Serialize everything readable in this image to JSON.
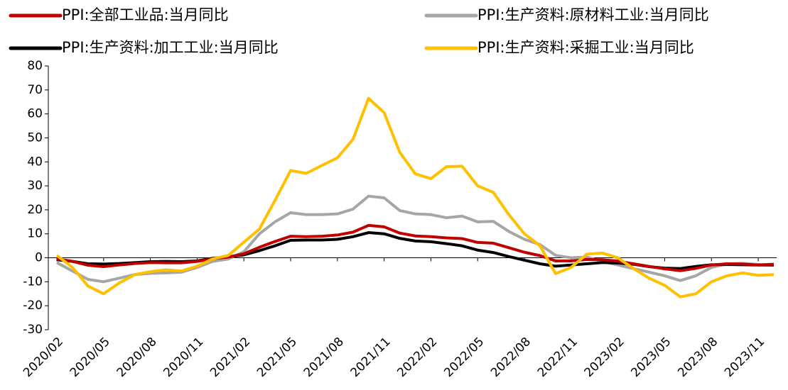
{
  "chart_data": {
    "type": "line",
    "categories": [
      "2020/02",
      null,
      null,
      "2020/05",
      null,
      null,
      "2020/08",
      null,
      null,
      "2020/11",
      null,
      null,
      "2021/02",
      null,
      null,
      "2021/05",
      null,
      null,
      "2021/08",
      null,
      null,
      "2021/11",
      null,
      null,
      "2022/02",
      null,
      null,
      "2022/05",
      null,
      null,
      "2022/08",
      null,
      null,
      "2022/11",
      null,
      null,
      "2023/02",
      null,
      null,
      "2023/05",
      null,
      null,
      "2023/08",
      null,
      null,
      "2023/11",
      null
    ],
    "series": [
      {
        "name": "PPI:全部工业品:当月同比",
        "color": "#c00000",
        "values": [
          -0.4,
          -1.5,
          -3.1,
          -3.7,
          -3.0,
          -2.4,
          -2.0,
          -2.1,
          -2.1,
          -1.5,
          -0.4,
          0.3,
          1.7,
          4.4,
          6.8,
          9.0,
          8.8,
          9.0,
          9.5,
          10.7,
          13.5,
          12.9,
          10.3,
          9.1,
          8.8,
          8.3,
          8.0,
          6.4,
          6.1,
          4.2,
          2.3,
          0.9,
          -1.3,
          -1.3,
          -0.7,
          -0.8,
          -1.4,
          -2.5,
          -3.6,
          -4.6,
          -5.4,
          -4.4,
          -3.0,
          -2.5,
          -2.6,
          -3.0,
          -2.7
        ]
      },
      {
        "name": "PPI:生产资料:原材料工业:当月同比",
        "color": "#a6a6a6",
        "values": [
          -2,
          -5.5,
          -9,
          -10,
          -8.5,
          -7,
          -6.5,
          -6.3,
          -6,
          -4,
          -1.5,
          -0.5,
          2.5,
          10,
          15,
          18.8,
          18,
          18,
          18.3,
          20.3,
          25.7,
          25,
          19.7,
          18.3,
          18,
          16.7,
          17.4,
          15,
          15.2,
          11,
          7.7,
          5.5,
          1,
          0,
          0.3,
          -1.5,
          -3,
          -4.5,
          -6,
          -7.5,
          -9.5,
          -7.5,
          -4,
          -2.5,
          -2.3,
          -2.8,
          -3
        ]
      },
      {
        "name": "PPI:生产资料:加工工业:当月同比",
        "color": "#000000",
        "values": [
          -0.8,
          -1.5,
          -2.5,
          -2.6,
          -2.4,
          -2,
          -1.6,
          -1.5,
          -1.6,
          -1.3,
          -0.2,
          0.4,
          1.2,
          3,
          5,
          7.3,
          7.4,
          7.4,
          7.7,
          8.8,
          10.5,
          10,
          8.1,
          7,
          6.7,
          5.9,
          5,
          3.2,
          2.2,
          0.5,
          -1,
          -2.5,
          -3.5,
          -3,
          -2.5,
          -2,
          -2.2,
          -2.7,
          -3.7,
          -4.3,
          -4.5,
          -3.6,
          -2.9,
          -2.8,
          -2.9,
          -3,
          -3
        ]
      },
      {
        "name": "PPI:生产资料:采掘工业:当月同比",
        "color": "#ffc000",
        "values": [
          1,
          -4,
          -11.8,
          -15,
          -10.5,
          -7,
          -5.8,
          -5,
          -5.5,
          -3.5,
          -0.5,
          1,
          6.5,
          12,
          24,
          36.4,
          35.2,
          38.5,
          41.7,
          49.4,
          66.5,
          60.5,
          44,
          35,
          33,
          38,
          38.2,
          30,
          27.3,
          18,
          10,
          5,
          -6.6,
          -4,
          1.5,
          2,
          0,
          -4.5,
          -8.5,
          -11.5,
          -16.3,
          -15,
          -10,
          -7.5,
          -6.3,
          -7.3,
          -7
        ]
      }
    ],
    "ylim": [
      -30,
      80
    ],
    "yticks": [
      -30,
      -20,
      -10,
      0,
      10,
      20,
      30,
      40,
      50,
      60,
      70,
      80
    ]
  }
}
